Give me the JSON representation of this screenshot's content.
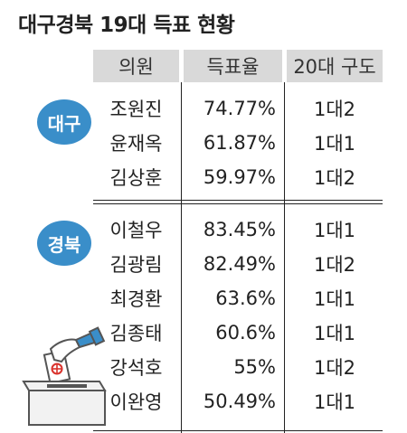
{
  "title": "대구경북 19대 득표 현황",
  "headers": [
    "의원",
    "득표율",
    "20대 구도"
  ],
  "regions": [
    {
      "label": "대구",
      "color": "#3a8ec9"
    },
    {
      "label": "경북",
      "color": "#3a8ec9"
    }
  ],
  "rows": [
    {
      "name": "조원진",
      "rate": "74.77%",
      "comp": "1대2"
    },
    {
      "name": "윤재옥",
      "rate": "61.87%",
      "comp": "1대1"
    },
    {
      "name": "김상훈",
      "rate": "59.97%",
      "comp": "1대2"
    },
    {
      "name": "이철우",
      "rate": "83.45%",
      "comp": "1대1"
    },
    {
      "name": "김광림",
      "rate": "82.49%",
      "comp": "1대2"
    },
    {
      "name": "최경환",
      "rate": "63.6%",
      "comp": "1대1"
    },
    {
      "name": "김종태",
      "rate": "60.6%",
      "comp": "1대1"
    },
    {
      "name": "강석호",
      "rate": "55%",
      "comp": "1대2"
    },
    {
      "name": "이완영",
      "rate": "50.49%",
      "comp": "1대1"
    }
  ],
  "chart_data": {
    "type": "table",
    "title": "대구경북 19대 득표 현황",
    "columns": [
      "의원",
      "득표율",
      "20대 구도"
    ],
    "groups": [
      {
        "region": "대구",
        "rows": [
          [
            "조원진",
            74.77,
            "1대2"
          ],
          [
            "윤재옥",
            61.87,
            "1대1"
          ],
          [
            "김상훈",
            59.97,
            "1대2"
          ]
        ]
      },
      {
        "region": "경북",
        "rows": [
          [
            "이철우",
            83.45,
            "1대1"
          ],
          [
            "김광림",
            82.49,
            "1대2"
          ],
          [
            "최경환",
            63.6,
            "1대1"
          ],
          [
            "김종태",
            60.6,
            "1대1"
          ],
          [
            "강석호",
            55,
            "1대2"
          ],
          [
            "이완영",
            50.49,
            "1대1"
          ]
        ]
      }
    ]
  },
  "icons": {
    "ballot": "ballot-box-icon"
  }
}
